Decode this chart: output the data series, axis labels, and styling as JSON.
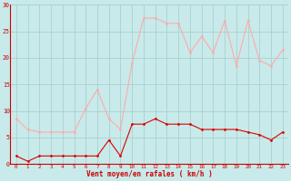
{
  "hours": [
    0,
    1,
    2,
    3,
    4,
    5,
    6,
    7,
    8,
    9,
    10,
    11,
    12,
    13,
    14,
    15,
    16,
    17,
    18,
    19,
    20,
    21,
    22,
    23
  ],
  "avg_wind": [
    1.5,
    0.5,
    1.5,
    1.5,
    1.5,
    1.5,
    1.5,
    1.5,
    4.5,
    1.5,
    7.5,
    7.5,
    8.5,
    7.5,
    7.5,
    7.5,
    6.5,
    6.5,
    6.5,
    6.5,
    6.0,
    5.5,
    4.5,
    6.0
  ],
  "gust_wind": [
    8.5,
    6.5,
    6.0,
    6.0,
    6.0,
    6.0,
    10.5,
    14.0,
    8.5,
    6.5,
    19.0,
    27.5,
    27.5,
    26.5,
    26.5,
    21.0,
    24.0,
    21.0,
    27.0,
    18.5,
    27.0,
    19.5,
    18.5,
    21.5
  ],
  "avg_color": "#dd0000",
  "gust_color": "#ffaaaa",
  "bg_color": "#c8eaea",
  "grid_color": "#aad0d0",
  "xlabel": "Vent moyen/en rafales ( km/h )",
  "xlabel_color": "#cc0000",
  "tick_color": "#cc0000",
  "axis_color": "#cc0000",
  "ylim": [
    0,
    30
  ],
  "yticks": [
    0,
    5,
    10,
    15,
    20,
    25,
    30
  ],
  "figwidth": 3.2,
  "figheight": 2.0,
  "dpi": 100
}
